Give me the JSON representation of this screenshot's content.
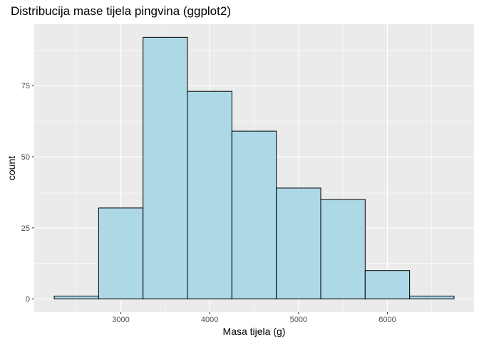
{
  "chart_data": {
    "type": "bar",
    "title": "Distribucija mase tijela pingvina (ggplot2)",
    "xlabel": "Masa tijela (g)",
    "ylabel": "count",
    "bin_width": 500,
    "bins": [
      {
        "x_start": 2250,
        "x_end": 2750,
        "count": 1
      },
      {
        "x_start": 2750,
        "x_end": 3250,
        "count": 32
      },
      {
        "x_start": 3250,
        "x_end": 3750,
        "count": 92
      },
      {
        "x_start": 3750,
        "x_end": 4250,
        "count": 73
      },
      {
        "x_start": 4250,
        "x_end": 4750,
        "count": 59
      },
      {
        "x_start": 4750,
        "x_end": 5250,
        "count": 39
      },
      {
        "x_start": 5250,
        "x_end": 5750,
        "count": 35
      },
      {
        "x_start": 5750,
        "x_end": 6250,
        "count": 10
      },
      {
        "x_start": 6250,
        "x_end": 6750,
        "count": 1
      }
    ],
    "x_ticks": [
      3000,
      4000,
      5000,
      6000
    ],
    "y_ticks": [
      0,
      25,
      50,
      75
    ],
    "xlim": [
      2025,
      6975
    ],
    "ylim": [
      -4.6,
      96.6
    ],
    "grid": true,
    "colors": {
      "panel_background": "#ebebeb",
      "grid_major": "#ffffff",
      "bar_fill": "#add8e6",
      "bar_outline": "#000000"
    }
  }
}
